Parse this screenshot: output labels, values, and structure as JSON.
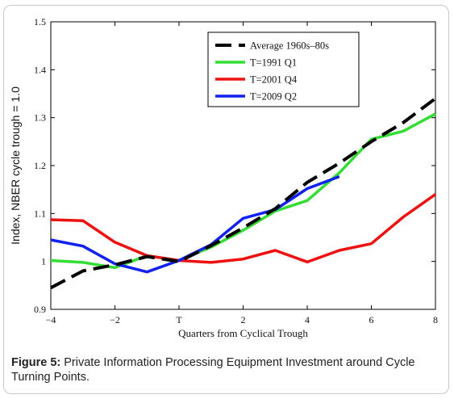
{
  "caption": {
    "lead": "Figure 5:",
    "text": " Private Information Processing Equipment Investment around Cycle Turning Points."
  },
  "chart_data": {
    "type": "line",
    "title": "",
    "xlabel": "Quarters from Cyclical Trough",
    "ylabel": "Index, NBER cycle trough = 1.0",
    "xlim": [
      -4,
      8
    ],
    "ylim": [
      0.9,
      1.5
    ],
    "x_ticks": [
      -4,
      -2,
      0,
      2,
      4,
      6,
      8
    ],
    "x_tick_labels": [
      "−4",
      "−2",
      "T",
      "2",
      "4",
      "6",
      "8"
    ],
    "y_ticks": [
      0.9,
      1.0,
      1.1,
      1.2,
      1.3,
      1.4,
      1.5
    ],
    "y_tick_labels": [
      "0.9",
      "1",
      "1.1",
      "1.2",
      "1.3",
      "1.4",
      "1.5"
    ],
    "grid": false,
    "legend_position": "top-right",
    "series": [
      {
        "name": "Average 1960s–80s",
        "color": "#000000",
        "dashed": true,
        "x": [
          -4,
          -3,
          -2,
          -1,
          0,
          1,
          2,
          3,
          4,
          5,
          6,
          7,
          8
        ],
        "y": [
          0.945,
          0.98,
          0.993,
          1.01,
          1.0,
          1.033,
          1.07,
          1.11,
          1.165,
          1.205,
          1.25,
          1.29,
          1.34
        ]
      },
      {
        "name": "T=1991 Q1",
        "color": "#33dd33",
        "dashed": false,
        "x": [
          -4,
          -3,
          -2,
          -1,
          0,
          1,
          2,
          3,
          4,
          5,
          6,
          7,
          8
        ],
        "y": [
          1.002,
          0.998,
          0.987,
          1.012,
          1.002,
          1.03,
          1.065,
          1.105,
          1.127,
          1.185,
          1.255,
          1.272,
          1.308
        ]
      },
      {
        "name": "T=2001 Q4",
        "color": "#ee1111",
        "dashed": false,
        "x": [
          -4,
          -3,
          -2,
          -1,
          0,
          1,
          2,
          3,
          4,
          5,
          6,
          7,
          8
        ],
        "y": [
          1.087,
          1.085,
          1.04,
          1.012,
          1.002,
          0.998,
          1.005,
          1.023,
          0.999,
          1.023,
          1.037,
          1.093,
          1.14
        ]
      },
      {
        "name": "T=2009 Q2",
        "color": "#1122ee",
        "dashed": false,
        "x": [
          -4,
          -3,
          -2,
          -1,
          0,
          1,
          2,
          3,
          4,
          5
        ],
        "y": [
          1.045,
          1.032,
          0.995,
          0.978,
          1.002,
          1.035,
          1.09,
          1.108,
          1.152,
          1.177
        ]
      }
    ]
  }
}
